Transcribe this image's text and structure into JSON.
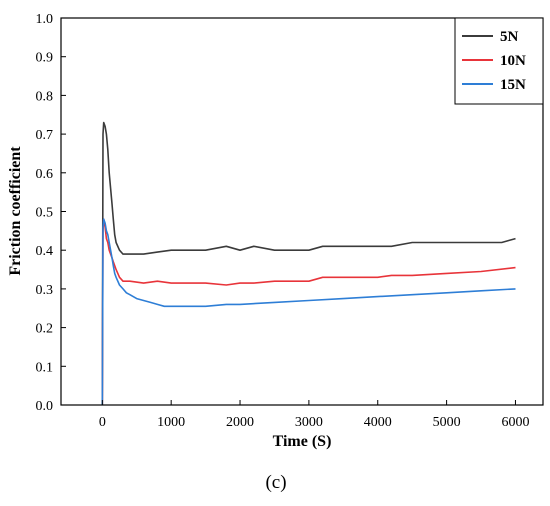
{
  "panel_label": "(c)",
  "chart_data": {
    "type": "line",
    "title": "",
    "xlabel": "Time (S)",
    "ylabel": "Friction coefficient",
    "xlim": [
      -600,
      6400
    ],
    "ylim": [
      0.0,
      1.0
    ],
    "x_ticks": [
      0,
      1000,
      2000,
      3000,
      4000,
      5000,
      6000
    ],
    "y_ticks": [
      0.0,
      0.1,
      0.2,
      0.3,
      0.4,
      0.5,
      0.6,
      0.7,
      0.8,
      0.9,
      1.0
    ],
    "x_tick_labels": [
      "0",
      "1000",
      "2000",
      "3000",
      "4000",
      "5000",
      "6000"
    ],
    "y_tick_labels": [
      "0.0",
      "0.1",
      "0.2",
      "0.3",
      "0.4",
      "0.5",
      "0.6",
      "0.7",
      "0.8",
      "0.9",
      "1.0"
    ],
    "grid": false,
    "legend_position": "top-right",
    "series": [
      {
        "name": "5N",
        "color": "#3b3b3b",
        "x": [
          0,
          10,
          20,
          40,
          60,
          80,
          100,
          120,
          140,
          160,
          180,
          200,
          250,
          300,
          350,
          400,
          500,
          600,
          800,
          1000,
          1200,
          1500,
          1800,
          2000,
          2200,
          2500,
          2800,
          3000,
          3200,
          3500,
          3800,
          4000,
          4200,
          4500,
          5000,
          5500,
          5800,
          6000
        ],
        "y": [
          0.0,
          0.7,
          0.73,
          0.72,
          0.7,
          0.66,
          0.6,
          0.56,
          0.52,
          0.48,
          0.44,
          0.42,
          0.4,
          0.39,
          0.39,
          0.39,
          0.39,
          0.39,
          0.395,
          0.4,
          0.4,
          0.4,
          0.41,
          0.4,
          0.41,
          0.4,
          0.4,
          0.4,
          0.41,
          0.41,
          0.41,
          0.41,
          0.41,
          0.42,
          0.42,
          0.42,
          0.42,
          0.43
        ]
      },
      {
        "name": "10N",
        "color": "#e8343a",
        "x": [
          0,
          10,
          20,
          40,
          60,
          80,
          100,
          120,
          140,
          160,
          180,
          200,
          250,
          300,
          400,
          600,
          800,
          1000,
          1200,
          1500,
          1800,
          2000,
          2200,
          2500,
          2800,
          3000,
          3200,
          3500,
          4000,
          4200,
          4500,
          5000,
          5500,
          6000
        ],
        "y": [
          0.0,
          0.45,
          0.48,
          0.46,
          0.43,
          0.42,
          0.4,
          0.39,
          0.38,
          0.37,
          0.36,
          0.35,
          0.33,
          0.32,
          0.32,
          0.315,
          0.32,
          0.315,
          0.315,
          0.315,
          0.31,
          0.315,
          0.315,
          0.32,
          0.32,
          0.32,
          0.33,
          0.33,
          0.33,
          0.335,
          0.335,
          0.34,
          0.345,
          0.355
        ]
      },
      {
        "name": "15N",
        "color": "#2e7ed6",
        "x": [
          0,
          10,
          20,
          40,
          60,
          80,
          100,
          120,
          140,
          160,
          180,
          200,
          250,
          300,
          350,
          400,
          500,
          600,
          700,
          800,
          900,
          1000,
          1200,
          1500,
          1800,
          2000,
          2500,
          3000,
          3500,
          4000,
          4500,
          5000,
          5500,
          6000
        ],
        "y": [
          0.0,
          0.46,
          0.48,
          0.47,
          0.45,
          0.44,
          0.42,
          0.4,
          0.38,
          0.36,
          0.34,
          0.33,
          0.31,
          0.3,
          0.29,
          0.285,
          0.275,
          0.27,
          0.265,
          0.26,
          0.255,
          0.255,
          0.255,
          0.255,
          0.26,
          0.26,
          0.265,
          0.27,
          0.275,
          0.28,
          0.285,
          0.29,
          0.295,
          0.3
        ]
      }
    ]
  }
}
